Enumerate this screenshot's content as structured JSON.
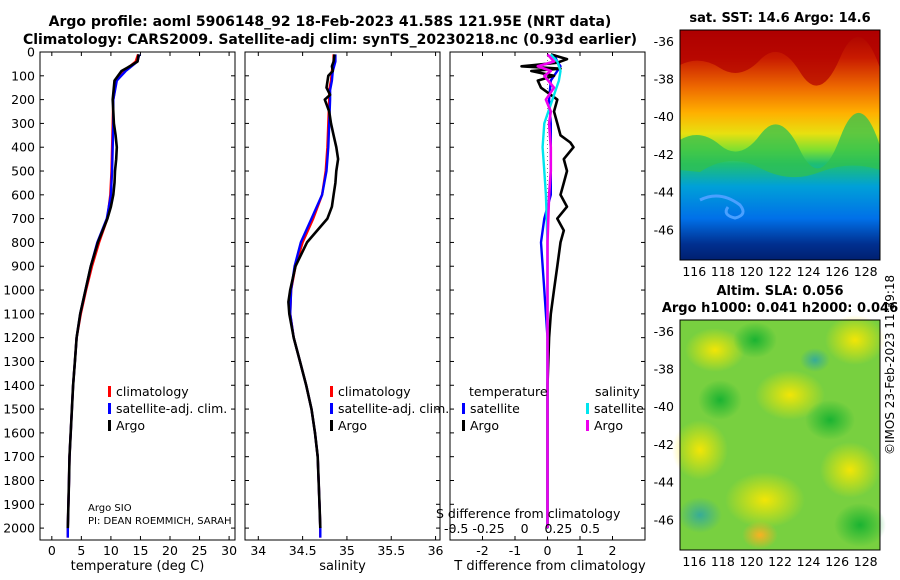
{
  "figure": {
    "title_line1": "Argo profile: aoml 5906148_92 18-Feb-2023 41.58S 121.95E (NRT data)",
    "title_line2": "Climatology: CARS2009. Satellite-adj clim: synTS_20230218.nc (0.93d earlier)",
    "credit": "©IMOS 23-Feb-2023 11:39:18",
    "pi_line1": "Argo SIO",
    "pi_line2": "PI: DEAN ROEMMICH, SARAH",
    "overlap_label": "S difference from climatology",
    "overlap_ticks": "-0.5 -0.25    0    0.25  0.5"
  },
  "colors": {
    "climatology": "#ff0000",
    "satellite_adj": "#0000ff",
    "argo": "#000000",
    "temp_satellite": "#0000ff",
    "sal_satellite": "#00e5ee",
    "sal_argo": "#ee00ee"
  },
  "legends": {
    "temperature_panel": [
      "climatology",
      "satellite-adj. clim.",
      "Argo"
    ],
    "salinity_panel": [
      "climatology",
      "satellite-adj. clim.",
      "Argo"
    ],
    "diff_panel": {
      "temp_header": "temperature",
      "sal_header": "salinity",
      "temp_items": [
        "satellite",
        "Argo"
      ],
      "sal_items": [
        "satellite",
        "Argo"
      ]
    }
  },
  "maps": {
    "sst_title": "sat. SST: 14.6 Argo: 14.6",
    "sla_title1": "Altim. SLA: 0.056",
    "sla_title2": "Argo h1000: 0.041 h2000: 0.046",
    "lon_ticks": [
      116,
      118,
      120,
      122,
      124,
      126,
      128
    ],
    "lat_ticks": [
      -36,
      -38,
      -40,
      -42,
      -44,
      -46
    ],
    "profile_lon": 121.95,
    "profile_lat": -41.58
  },
  "chart_data": [
    {
      "type": "line",
      "title": "",
      "xlabel": "temperature (deg C)",
      "ylabel": "",
      "xlim": [
        -2,
        31
      ],
      "ylim": [
        2050,
        0
      ],
      "xticks": [
        0,
        5,
        10,
        15,
        20,
        25,
        30
      ],
      "yticks": [
        0,
        100,
        200,
        300,
        400,
        500,
        600,
        700,
        800,
        900,
        1000,
        1100,
        1200,
        1300,
        1400,
        1500,
        1600,
        1700,
        1800,
        1900,
        2000
      ],
      "series": [
        {
          "name": "climatology",
          "color": "#ff0000",
          "depth": [
            10,
            40,
            80,
            120,
            200,
            300,
            400,
            500,
            600,
            700,
            800,
            900,
            1000,
            1100,
            1200,
            1300,
            1400,
            1500,
            1600,
            1700,
            1800,
            1900,
            2000,
            2040
          ],
          "values": [
            14.6,
            14.2,
            12.2,
            10.9,
            10.4,
            10.3,
            10.2,
            10.1,
            9.9,
            9.4,
            8.0,
            6.8,
            5.8,
            4.9,
            4.2,
            3.9,
            3.6,
            3.4,
            3.2,
            3.0,
            2.9,
            2.8,
            2.7,
            2.7
          ]
        },
        {
          "name": "satellite-adj. clim.",
          "color": "#0000ff",
          "depth": [
            10,
            40,
            80,
            120,
            200,
            300,
            400,
            500,
            600,
            700,
            800,
            900,
            1000,
            1100,
            1200,
            1300,
            1400,
            1500,
            1600,
            1700,
            1800,
            1900,
            2000,
            2040
          ],
          "values": [
            14.8,
            14.5,
            12.5,
            11.0,
            10.4,
            10.4,
            10.3,
            10.2,
            10.0,
            9.3,
            7.7,
            6.6,
            5.7,
            4.8,
            4.2,
            3.9,
            3.6,
            3.4,
            3.2,
            3.0,
            2.9,
            2.8,
            2.7,
            2.7
          ]
        },
        {
          "name": "Argo",
          "color": "#000000",
          "depth": [
            10,
            40,
            60,
            80,
            120,
            200,
            300,
            350,
            400,
            450,
            500,
            550,
            600,
            650,
            700,
            800,
            900,
            1000,
            1100,
            1200,
            1300,
            1400,
            1500,
            1600,
            1700,
            1800,
            1900,
            2000
          ],
          "values": [
            14.7,
            14.5,
            13.2,
            11.8,
            10.6,
            10.3,
            10.5,
            10.8,
            11.0,
            10.9,
            10.7,
            10.6,
            10.4,
            10.0,
            9.4,
            7.8,
            6.6,
            5.7,
            4.8,
            4.2,
            3.9,
            3.6,
            3.4,
            3.2,
            3.0,
            2.9,
            2.8,
            2.7
          ]
        }
      ]
    },
    {
      "type": "line",
      "title": "",
      "xlabel": "salinity",
      "ylabel": "",
      "xlim": [
        33.85,
        36.05
      ],
      "ylim": [
        2050,
        0
      ],
      "xticks": [
        34,
        34.5,
        35,
        35.5,
        36
      ],
      "xtick_labels": [
        "34",
        "34.5",
        "35",
        "35.5",
        "36"
      ],
      "series": [
        {
          "name": "climatology",
          "color": "#ff0000",
          "depth": [
            10,
            40,
            80,
            120,
            160,
            200,
            300,
            400,
            500,
            600,
            700,
            800,
            900,
            1000,
            1100,
            1200,
            1300,
            1400,
            1500,
            1600,
            1700,
            1800,
            1900,
            2000,
            2040
          ],
          "values": [
            34.85,
            34.85,
            34.83,
            34.82,
            34.8,
            34.8,
            34.79,
            34.78,
            34.76,
            34.72,
            34.62,
            34.5,
            34.42,
            34.37,
            34.36,
            34.4,
            34.47,
            34.54,
            34.6,
            34.64,
            34.67,
            34.68,
            34.69,
            34.7,
            34.7
          ]
        },
        {
          "name": "satellite-adj. clim.",
          "color": "#0000ff",
          "depth": [
            10,
            40,
            80,
            120,
            160,
            200,
            300,
            400,
            500,
            600,
            700,
            800,
            900,
            1000,
            1100,
            1200,
            1300,
            1400,
            1500,
            1600,
            1700,
            1800,
            1900,
            2000,
            2040
          ],
          "values": [
            34.87,
            34.87,
            34.84,
            34.83,
            34.81,
            34.81,
            34.8,
            34.79,
            34.77,
            34.72,
            34.6,
            34.48,
            34.41,
            34.37,
            34.36,
            34.4,
            34.47,
            34.54,
            34.6,
            34.64,
            34.67,
            34.68,
            34.69,
            34.7,
            34.7
          ]
        },
        {
          "name": "Argo",
          "color": "#000000",
          "depth": [
            10,
            40,
            60,
            80,
            100,
            150,
            180,
            200,
            250,
            300,
            350,
            400,
            450,
            500,
            550,
            600,
            650,
            700,
            800,
            900,
            1000,
            1050,
            1100,
            1200,
            1300,
            1400,
            1500,
            1600,
            1700,
            1800,
            1900,
            2000
          ],
          "values": [
            34.86,
            34.85,
            34.83,
            34.84,
            34.79,
            34.77,
            34.81,
            34.75,
            34.8,
            34.82,
            34.85,
            34.88,
            34.9,
            34.88,
            34.87,
            34.85,
            34.83,
            34.78,
            34.55,
            34.42,
            34.36,
            34.34,
            34.35,
            34.4,
            34.47,
            34.54,
            34.6,
            34.64,
            34.67,
            34.68,
            34.69,
            34.7
          ]
        }
      ]
    },
    {
      "type": "line",
      "title": "",
      "xlabel": "T difference from climatology",
      "ylabel": "",
      "xlim": [
        -3,
        3
      ],
      "ylim": [
        2050,
        0
      ],
      "xticks": [
        -2,
        -1,
        0,
        1,
        2
      ],
      "series": [
        {
          "name": "temperature satellite",
          "color": "#0000ff",
          "depth": [
            10,
            40,
            60,
            80,
            120,
            200,
            300,
            400,
            500,
            600,
            700,
            800,
            1000,
            1200,
            1400,
            1600,
            1800,
            2000
          ],
          "values": [
            0.2,
            0.3,
            0.4,
            0.3,
            0.1,
            0.05,
            0.1,
            0.1,
            0.1,
            0.1,
            -0.1,
            -0.2,
            -0.1,
            0.0,
            0.0,
            0.0,
            0.0,
            0.0
          ]
        },
        {
          "name": "temperature Argo",
          "color": "#000000",
          "depth": [
            10,
            30,
            45,
            55,
            60,
            70,
            80,
            100,
            120,
            150,
            200,
            250,
            300,
            350,
            380,
            400,
            450,
            500,
            550,
            600,
            650,
            700,
            750,
            800,
            900,
            1000,
            1100,
            1200,
            1400,
            1600,
            1800,
            2000
          ],
          "values": [
            0.1,
            0.6,
            0.3,
            -0.4,
            -0.8,
            0.4,
            -0.5,
            0.2,
            -0.3,
            -0.2,
            0.3,
            0.2,
            0.3,
            0.4,
            0.7,
            0.8,
            0.5,
            0.6,
            0.5,
            0.4,
            0.6,
            0.3,
            0.5,
            0.4,
            0.3,
            0.2,
            0.1,
            0.05,
            0.0,
            0.0,
            0.0,
            0.0
          ]
        },
        {
          "name": "salinity satellite",
          "color": "#00e5ee",
          "depth": [
            10,
            40,
            80,
            120,
            200,
            300,
            400,
            500,
            600,
            800,
            1000,
            1200,
            1400,
            1600,
            1800,
            2000
          ],
          "values": [
            0.1,
            0.3,
            0.4,
            0.35,
            0.15,
            -0.1,
            -0.15,
            -0.1,
            -0.05,
            0.0,
            0.0,
            0.0,
            0.0,
            0.0,
            0.0,
            0.0
          ]
        },
        {
          "name": "salinity Argo",
          "color": "#ee00ee",
          "depth": [
            10,
            40,
            60,
            80,
            100,
            150,
            200,
            250,
            300,
            400,
            500,
            600,
            800,
            1000,
            1200,
            1400,
            1600,
            1800,
            2000
          ],
          "values": [
            0.0,
            0.2,
            -0.3,
            0.1,
            -0.1,
            0.2,
            -0.05,
            0.1,
            0.05,
            0.1,
            0.1,
            0.05,
            0.0,
            0.0,
            0.0,
            0.0,
            0.0,
            0.0,
            0.0
          ]
        }
      ]
    }
  ]
}
